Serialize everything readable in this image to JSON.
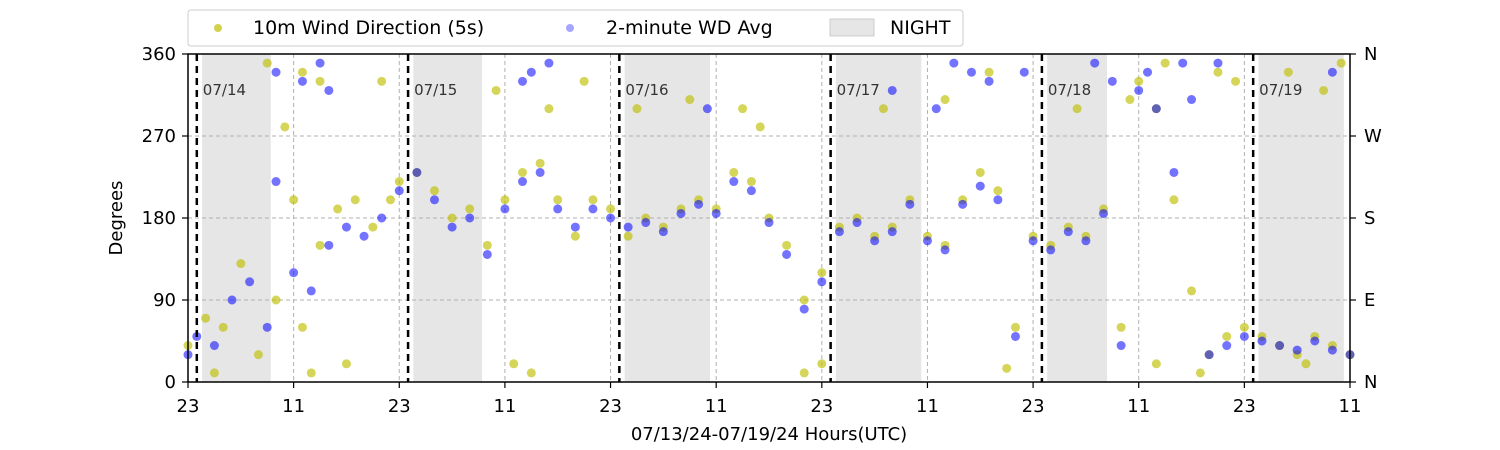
{
  "chart_data": {
    "type": "scatter",
    "title": "",
    "xlabel": "07/13/24-07/19/24  Hours(UTC)",
    "ylabel": "Degrees",
    "x_range_hours": [
      0,
      132
    ],
    "ylim": [
      0,
      360
    ],
    "x_ticks": [
      {
        "hour": 0,
        "label": "23"
      },
      {
        "hour": 12,
        "label": "11"
      },
      {
        "hour": 24,
        "label": "23"
      },
      {
        "hour": 36,
        "label": "11"
      },
      {
        "hour": 48,
        "label": "23"
      },
      {
        "hour": 60,
        "label": "11"
      },
      {
        "hour": 72,
        "label": "23"
      },
      {
        "hour": 84,
        "label": "11"
      },
      {
        "hour": 96,
        "label": "23"
      },
      {
        "hour": 108,
        "label": "11"
      },
      {
        "hour": 120,
        "label": "23"
      },
      {
        "hour": 132,
        "label": "11"
      }
    ],
    "y_ticks": [
      0,
      90,
      180,
      270,
      360
    ],
    "y_ticks_right": [
      {
        "value": 0,
        "label": "N"
      },
      {
        "value": 90,
        "label": "E"
      },
      {
        "value": 180,
        "label": "S"
      },
      {
        "value": 270,
        "label": "W"
      },
      {
        "value": 360,
        "label": "N"
      }
    ],
    "grid": "dashed",
    "legend": {
      "placement": "top",
      "entries": [
        {
          "label": "10m Wind Direction (5s)",
          "color": "#bfbf00",
          "marker": "dot"
        },
        {
          "label": "2-minute WD Avg",
          "color": "#0000ff",
          "marker": "dot"
        },
        {
          "label": "NIGHT",
          "color": "#e6e6e6",
          "marker": "patch"
        }
      ]
    },
    "day_markers": [
      {
        "hour": 1,
        "label": "07/14"
      },
      {
        "hour": 25,
        "label": "07/15"
      },
      {
        "hour": 49,
        "label": "07/16"
      },
      {
        "hour": 73,
        "label": "07/17"
      },
      {
        "hour": 97,
        "label": "07/18"
      },
      {
        "hour": 121,
        "label": "07/19"
      }
    ],
    "night_periods": [
      [
        1.6,
        9.4
      ],
      [
        25.6,
        33.4
      ],
      [
        49.6,
        59.3
      ],
      [
        73.6,
        83.3
      ],
      [
        97.6,
        104.4
      ],
      [
        121.6,
        131.3
      ]
    ],
    "series": [
      {
        "name": "10m Wind Direction (5s)",
        "color": "#bfbf00",
        "points": [
          [
            0,
            40
          ],
          [
            2,
            70
          ],
          [
            4,
            60
          ],
          [
            6,
            130
          ],
          [
            8,
            30
          ],
          [
            10,
            90
          ],
          [
            11,
            280
          ],
          [
            12,
            200
          ],
          [
            13,
            60
          ],
          [
            15,
            150
          ],
          [
            17,
            190
          ],
          [
            19,
            200
          ],
          [
            21,
            170
          ],
          [
            23,
            200
          ],
          [
            24,
            220
          ],
          [
            26,
            230
          ],
          [
            28,
            210
          ],
          [
            30,
            180
          ],
          [
            32,
            190
          ],
          [
            34,
            150
          ],
          [
            36,
            200
          ],
          [
            38,
            230
          ],
          [
            40,
            240
          ],
          [
            42,
            200
          ],
          [
            44,
            160
          ],
          [
            46,
            200
          ],
          [
            48,
            190
          ],
          [
            50,
            160
          ],
          [
            52,
            180
          ],
          [
            54,
            170
          ],
          [
            56,
            190
          ],
          [
            58,
            200
          ],
          [
            60,
            190
          ],
          [
            62,
            230
          ],
          [
            64,
            220
          ],
          [
            66,
            180
          ],
          [
            68,
            150
          ],
          [
            70,
            90
          ],
          [
            72,
            120
          ],
          [
            74,
            170
          ],
          [
            76,
            180
          ],
          [
            78,
            160
          ],
          [
            80,
            170
          ],
          [
            82,
            200
          ],
          [
            84,
            160
          ],
          [
            86,
            150
          ],
          [
            88,
            200
          ],
          [
            90,
            230
          ],
          [
            92,
            210
          ],
          [
            94,
            60
          ],
          [
            96,
            160
          ],
          [
            98,
            150
          ],
          [
            100,
            170
          ],
          [
            102,
            160
          ],
          [
            104,
            190
          ],
          [
            106,
            60
          ],
          [
            108,
            330
          ],
          [
            110,
            300
          ],
          [
            112,
            200
          ],
          [
            114,
            100
          ],
          [
            116,
            30
          ],
          [
            118,
            50
          ],
          [
            120,
            60
          ],
          [
            122,
            50
          ],
          [
            124,
            40
          ],
          [
            126,
            30
          ],
          [
            128,
            50
          ],
          [
            130,
            40
          ],
          [
            132,
            30
          ],
          [
            9,
            350
          ],
          [
            13,
            340
          ],
          [
            15,
            330
          ],
          [
            22,
            330
          ],
          [
            35,
            320
          ],
          [
            41,
            300
          ],
          [
            45,
            330
          ],
          [
            51,
            300
          ],
          [
            57,
            310
          ],
          [
            63,
            300
          ],
          [
            65,
            280
          ],
          [
            79,
            300
          ],
          [
            86,
            310
          ],
          [
            91,
            340
          ],
          [
            101,
            300
          ],
          [
            107,
            310
          ],
          [
            111,
            350
          ],
          [
            117,
            340
          ],
          [
            119,
            330
          ],
          [
            125,
            340
          ],
          [
            129,
            320
          ],
          [
            131,
            350
          ],
          [
            3,
            10
          ],
          [
            14,
            10
          ],
          [
            18,
            20
          ],
          [
            37,
            20
          ],
          [
            39,
            10
          ],
          [
            70,
            10
          ],
          [
            72,
            20
          ],
          [
            93,
            15
          ],
          [
            110,
            20
          ],
          [
            115,
            10
          ],
          [
            127,
            20
          ]
        ]
      },
      {
        "name": "2-minute WD Avg",
        "color": "#0000ff",
        "points": [
          [
            0,
            30
          ],
          [
            1,
            50
          ],
          [
            3,
            40
          ],
          [
            5,
            90
          ],
          [
            7,
            110
          ],
          [
            9,
            60
          ],
          [
            10,
            220
          ],
          [
            12,
            120
          ],
          [
            14,
            100
          ],
          [
            16,
            150
          ],
          [
            18,
            170
          ],
          [
            20,
            160
          ],
          [
            22,
            180
          ],
          [
            24,
            210
          ],
          [
            26,
            230
          ],
          [
            28,
            200
          ],
          [
            30,
            170
          ],
          [
            32,
            180
          ],
          [
            34,
            140
          ],
          [
            36,
            190
          ],
          [
            38,
            220
          ],
          [
            40,
            230
          ],
          [
            42,
            190
          ],
          [
            44,
            170
          ],
          [
            46,
            190
          ],
          [
            48,
            180
          ],
          [
            50,
            170
          ],
          [
            52,
            175
          ],
          [
            54,
            165
          ],
          [
            56,
            185
          ],
          [
            58,
            195
          ],
          [
            60,
            185
          ],
          [
            62,
            220
          ],
          [
            64,
            210
          ],
          [
            66,
            175
          ],
          [
            68,
            140
          ],
          [
            70,
            80
          ],
          [
            72,
            110
          ],
          [
            74,
            165
          ],
          [
            76,
            175
          ],
          [
            78,
            155
          ],
          [
            80,
            165
          ],
          [
            82,
            195
          ],
          [
            84,
            155
          ],
          [
            86,
            145
          ],
          [
            88,
            195
          ],
          [
            90,
            215
          ],
          [
            92,
            200
          ],
          [
            94,
            50
          ],
          [
            96,
            155
          ],
          [
            98,
            145
          ],
          [
            100,
            165
          ],
          [
            102,
            155
          ],
          [
            104,
            185
          ],
          [
            106,
            40
          ],
          [
            108,
            320
          ],
          [
            110,
            300
          ],
          [
            112,
            230
          ],
          [
            114,
            310
          ],
          [
            116,
            30
          ],
          [
            118,
            40
          ],
          [
            120,
            50
          ],
          [
            122,
            45
          ],
          [
            124,
            40
          ],
          [
            126,
            35
          ],
          [
            128,
            45
          ],
          [
            130,
            35
          ],
          [
            132,
            30
          ],
          [
            10,
            340
          ],
          [
            13,
            330
          ],
          [
            15,
            350
          ],
          [
            16,
            320
          ],
          [
            38,
            330
          ],
          [
            39,
            340
          ],
          [
            41,
            350
          ],
          [
            59,
            300
          ],
          [
            80,
            320
          ],
          [
            85,
            300
          ],
          [
            87,
            350
          ],
          [
            89,
            340
          ],
          [
            91,
            330
          ],
          [
            95,
            340
          ],
          [
            103,
            350
          ],
          [
            105,
            330
          ],
          [
            109,
            340
          ],
          [
            113,
            350
          ],
          [
            117,
            350
          ],
          [
            130,
            340
          ]
        ]
      }
    ]
  }
}
